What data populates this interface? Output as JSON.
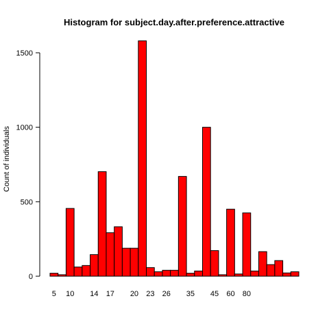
{
  "chart_data": {
    "type": "bar",
    "title": "Histogram for subject.day.after.preference.attractive",
    "xlabel": "",
    "ylabel": "Count of individuals",
    "ylim": [
      0,
      1650
    ],
    "yticks": [
      0,
      500,
      1000,
      1500
    ],
    "xtick_labels": [
      {
        "label": "5",
        "bin": 0
      },
      {
        "label": "10",
        "bin": 2
      },
      {
        "label": "14",
        "bin": 5
      },
      {
        "label": "17",
        "bin": 7
      },
      {
        "label": "20",
        "bin": 10
      },
      {
        "label": "23",
        "bin": 12
      },
      {
        "label": "26",
        "bin": 14
      },
      {
        "label": "35",
        "bin": 17
      },
      {
        "label": "45",
        "bin": 20
      },
      {
        "label": "60",
        "bin": 22
      },
      {
        "label": "80",
        "bin": 24
      }
    ],
    "values": [
      20,
      10,
      455,
      62,
      72,
      145,
      702,
      292,
      332,
      188,
      188,
      1580,
      58,
      30,
      40,
      40,
      670,
      20,
      35,
      1000,
      172,
      10,
      450,
      15,
      425,
      35,
      165,
      78,
      105,
      22,
      30
    ],
    "colors": {
      "bar_fill": "#ff0000",
      "bar_stroke": "#000000"
    }
  }
}
